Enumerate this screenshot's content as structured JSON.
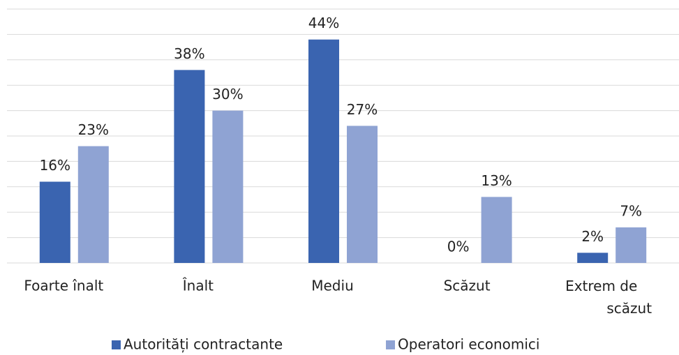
{
  "chart_data": {
    "type": "bar",
    "categories": [
      "Foarte înalt",
      "Înalt",
      "Mediu",
      "Scăzut",
      "Extrem de scăzut"
    ],
    "series": [
      {
        "name": "Autorități contractante",
        "color": "#3a64b0",
        "values": [
          16,
          38,
          44,
          0,
          2
        ],
        "value_labels": [
          "16%",
          "38%",
          "44%",
          "0%",
          "2%"
        ]
      },
      {
        "name": "Operatori economici",
        "color": "#8fa3d3",
        "values": [
          23,
          30,
          27,
          13,
          7
        ],
        "value_labels": [
          "23%",
          "30%",
          "27%",
          "13%",
          "7%"
        ]
      }
    ],
    "ylim": [
      0,
      50
    ],
    "yticks": [
      0,
      5,
      10,
      15,
      20,
      25,
      30,
      35,
      40,
      45,
      50
    ],
    "grid": true,
    "legend": "bottom"
  }
}
